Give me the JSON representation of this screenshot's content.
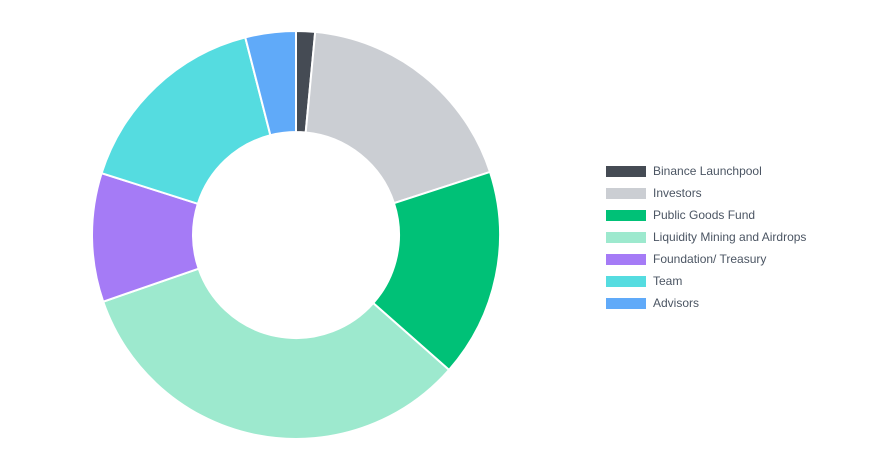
{
  "chart_data": {
    "type": "pie",
    "variant": "donut",
    "title": "",
    "legend_position": "right",
    "slices": [
      {
        "label": "Binance Launchpool",
        "value": 1.5,
        "color": "#454b54"
      },
      {
        "label": "Investors",
        "value": 18.5,
        "color": "#cbced3"
      },
      {
        "label": "Public Goods Fund",
        "value": 16.5,
        "color": "#00c177"
      },
      {
        "label": "Liquidity Mining and Airdrops",
        "value": 33.2,
        "color": "#9de9ce"
      },
      {
        "label": "Foundation/ Treasury",
        "value": 10.2,
        "color": "#a57bf6"
      },
      {
        "label": "Team",
        "value": 16.1,
        "color": "#55dce0"
      },
      {
        "label": "Advisors",
        "value": 4.0,
        "color": "#60aaf9"
      }
    ]
  }
}
